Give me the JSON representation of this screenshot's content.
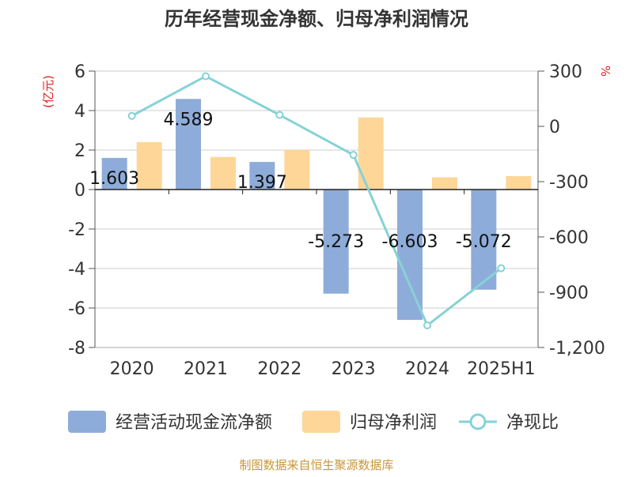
{
  "chart_data": {
    "type": "bar",
    "title": "历年经营现金净额、归母净利润情况",
    "categories": [
      "2020",
      "2021",
      "2022",
      "2023",
      "2024",
      "2025H1"
    ],
    "left_axis": {
      "label": "(亿元)",
      "ylim": [
        -8,
        6
      ],
      "ticks": [
        6,
        4,
        2,
        0,
        -2,
        -4,
        -6,
        -8
      ],
      "tick_labels": [
        "6",
        "4",
        "2",
        "0",
        "-2",
        "-4",
        "-6",
        "-8"
      ]
    },
    "right_axis": {
      "label": "%",
      "ylim": [
        -1200,
        300
      ],
      "ticks": [
        300,
        0,
        -300,
        -600,
        -900,
        -1200
      ],
      "tick_labels": [
        "300",
        "0",
        "-300",
        "-600",
        "-900",
        "-1,200"
      ]
    },
    "series": [
      {
        "name": "经营活动现金流净额",
        "type": "bar",
        "axis": "left",
        "color": "#8eacd9",
        "values": [
          1.603,
          4.589,
          1.397,
          -5.273,
          -6.603,
          -5.072
        ],
        "labels": [
          "1.603",
          "4.589",
          "1.397",
          "-5.273",
          "-6.603",
          "-5.072"
        ]
      },
      {
        "name": "归母净利润",
        "type": "bar",
        "axis": "left",
        "color": "#fdd698",
        "values": [
          2.4,
          1.65,
          2.0,
          3.65,
          0.62,
          0.68
        ]
      },
      {
        "name": "净现比",
        "type": "line",
        "axis": "right",
        "color": "#86d2d6",
        "values": [
          57,
          272,
          62,
          -155,
          -1080,
          -770
        ]
      }
    ],
    "grid": true,
    "legend_position": "bottom"
  },
  "footer": {
    "source": "制图数据来自恒生聚源数据库",
    "source_color": "#c7963c"
  }
}
